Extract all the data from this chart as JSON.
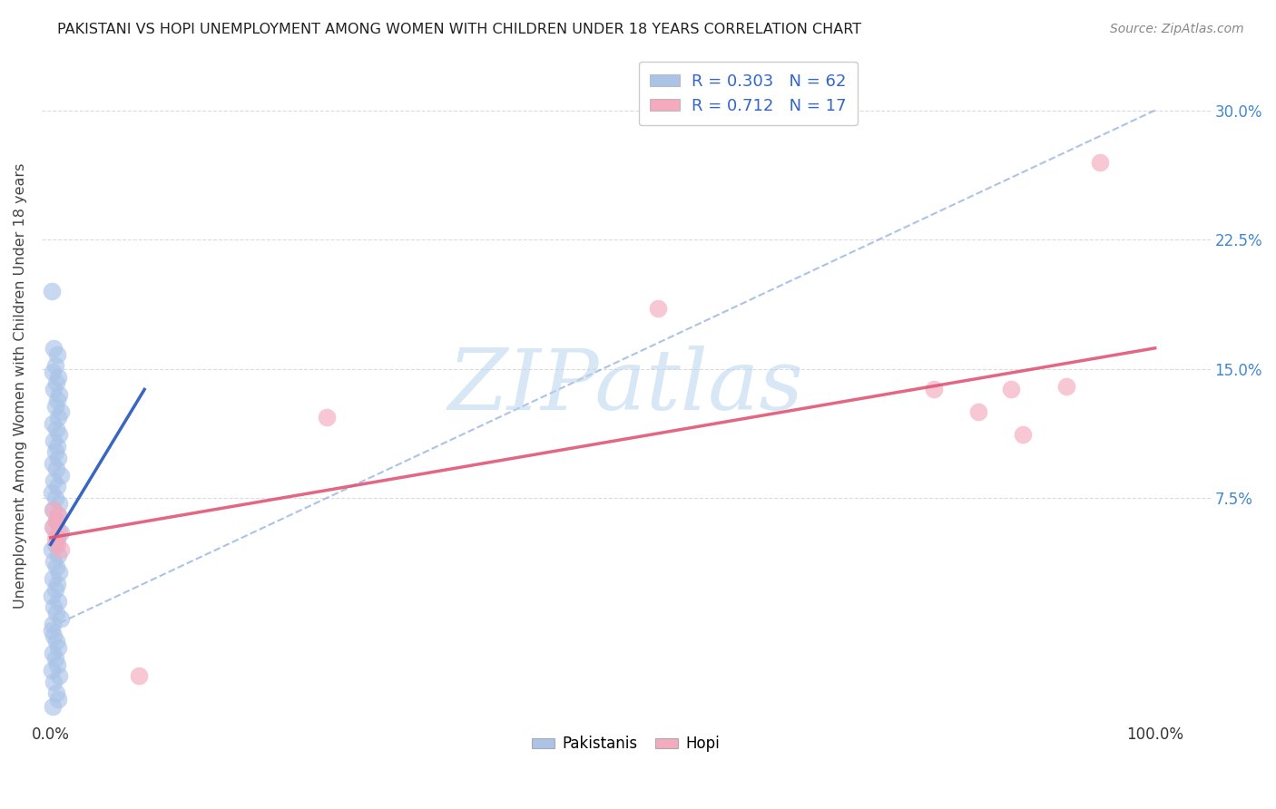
{
  "title": "PAKISTANI VS HOPI UNEMPLOYMENT AMONG WOMEN WITH CHILDREN UNDER 18 YEARS CORRELATION CHART",
  "source": "Source: ZipAtlas.com",
  "ylabel": "Unemployment Among Women with Children Under 18 years",
  "ytick_labels": [
    "7.5%",
    "15.0%",
    "22.5%",
    "30.0%"
  ],
  "ytick_values": [
    0.075,
    0.15,
    0.225,
    0.3
  ],
  "xlim": [
    -0.008,
    1.05
  ],
  "ylim": [
    -0.055,
    0.335
  ],
  "legend_blue_R": "R = 0.303",
  "legend_blue_N": "N = 62",
  "legend_pink_R": "R = 0.712",
  "legend_pink_N": "N = 17",
  "blue_color": "#aac4e8",
  "pink_color": "#f5aabe",
  "blue_line_color": "#2255bb",
  "pink_line_color": "#e05575",
  "dash_line_color": "#88aadd",
  "blue_scatter": [
    [
      0.001,
      0.195
    ],
    [
      0.003,
      0.162
    ],
    [
      0.006,
      0.158
    ],
    [
      0.004,
      0.152
    ],
    [
      0.002,
      0.148
    ],
    [
      0.007,
      0.145
    ],
    [
      0.005,
      0.142
    ],
    [
      0.003,
      0.138
    ],
    [
      0.008,
      0.135
    ],
    [
      0.006,
      0.132
    ],
    [
      0.004,
      0.128
    ],
    [
      0.009,
      0.125
    ],
    [
      0.007,
      0.122
    ],
    [
      0.002,
      0.118
    ],
    [
      0.005,
      0.115
    ],
    [
      0.008,
      0.112
    ],
    [
      0.003,
      0.108
    ],
    [
      0.006,
      0.105
    ],
    [
      0.004,
      0.102
    ],
    [
      0.007,
      0.098
    ],
    [
      0.002,
      0.095
    ],
    [
      0.005,
      0.092
    ],
    [
      0.009,
      0.088
    ],
    [
      0.003,
      0.085
    ],
    [
      0.006,
      0.082
    ],
    [
      0.001,
      0.078
    ],
    [
      0.004,
      0.075
    ],
    [
      0.008,
      0.072
    ],
    [
      0.002,
      0.068
    ],
    [
      0.007,
      0.065
    ],
    [
      0.005,
      0.062
    ],
    [
      0.003,
      0.058
    ],
    [
      0.009,
      0.055
    ],
    [
      0.006,
      0.052
    ],
    [
      0.004,
      0.048
    ],
    [
      0.001,
      0.045
    ],
    [
      0.007,
      0.042
    ],
    [
      0.003,
      0.038
    ],
    [
      0.005,
      0.035
    ],
    [
      0.008,
      0.032
    ],
    [
      0.002,
      0.028
    ],
    [
      0.006,
      0.025
    ],
    [
      0.004,
      0.022
    ],
    [
      0.001,
      0.018
    ],
    [
      0.007,
      0.015
    ],
    [
      0.003,
      0.012
    ],
    [
      0.005,
      0.008
    ],
    [
      0.009,
      0.005
    ],
    [
      0.002,
      0.002
    ],
    [
      0.001,
      -0.002
    ],
    [
      0.003,
      -0.005
    ],
    [
      0.005,
      -0.008
    ],
    [
      0.007,
      -0.012
    ],
    [
      0.002,
      -0.015
    ],
    [
      0.004,
      -0.018
    ],
    [
      0.006,
      -0.022
    ],
    [
      0.001,
      -0.025
    ],
    [
      0.008,
      -0.028
    ],
    [
      0.003,
      -0.032
    ],
    [
      0.005,
      -0.038
    ],
    [
      0.007,
      -0.042
    ],
    [
      0.002,
      -0.046
    ]
  ],
  "pink_scatter": [
    [
      0.003,
      0.068
    ],
    [
      0.007,
      0.065
    ],
    [
      0.005,
      0.062
    ],
    [
      0.002,
      0.058
    ],
    [
      0.008,
      0.055
    ],
    [
      0.004,
      0.052
    ],
    [
      0.006,
      0.048
    ],
    [
      0.009,
      0.045
    ],
    [
      0.25,
      0.122
    ],
    [
      0.55,
      0.185
    ],
    [
      0.8,
      0.138
    ],
    [
      0.84,
      0.125
    ],
    [
      0.87,
      0.138
    ],
    [
      0.88,
      0.112
    ],
    [
      0.92,
      0.14
    ],
    [
      0.95,
      0.27
    ],
    [
      0.08,
      -0.028
    ]
  ],
  "blue_trend_x": [
    0.0,
    0.085
  ],
  "blue_trend_y": [
    0.048,
    0.138
  ],
  "pink_trend_x": [
    0.0,
    1.0
  ],
  "pink_trend_y": [
    0.052,
    0.162
  ],
  "diag_line_x": [
    0.0,
    1.0
  ],
  "diag_line_y": [
    0.0,
    0.3
  ],
  "watermark": "ZIPatlas"
}
